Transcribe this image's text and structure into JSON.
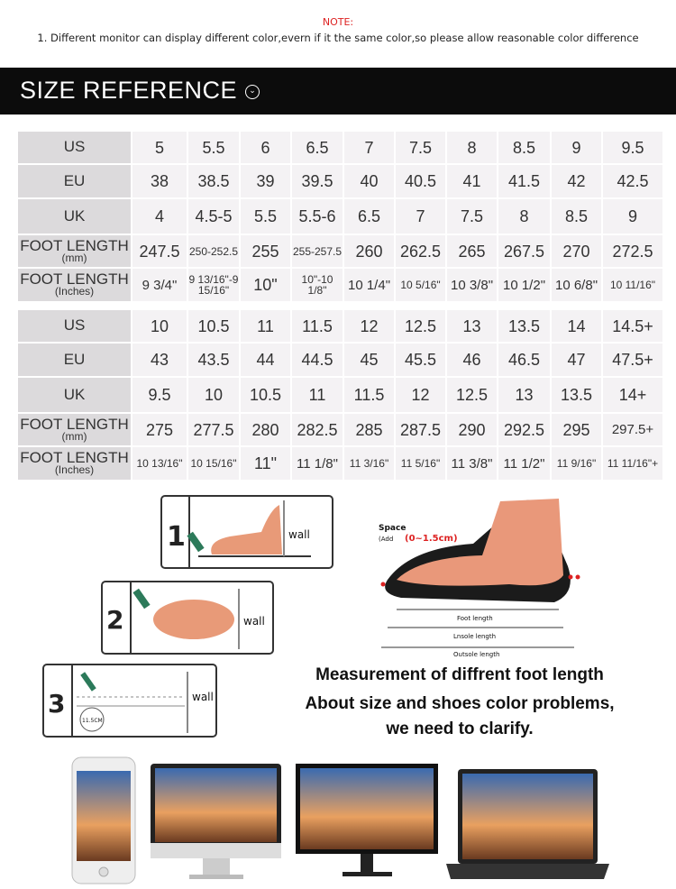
{
  "note": {
    "title": "NOTE:",
    "line": "1. Different monitor can display different color,evern if it the same color,so please allow reasonable color difference"
  },
  "header": {
    "title": "SIZE REFERENCE",
    "icon": "chevron-down-circle-icon"
  },
  "tables": [
    {
      "rows": [
        {
          "label": "US",
          "sub": "",
          "values": [
            "5",
            "5.5",
            "6",
            "6.5",
            "7",
            "7.5",
            "8",
            "8.5",
            "9",
            "9.5"
          ]
        },
        {
          "label": "EU",
          "sub": "",
          "values": [
            "38",
            "38.5",
            "39",
            "39.5",
            "40",
            "40.5",
            "41",
            "41.5",
            "42",
            "42.5"
          ]
        },
        {
          "label": "UK",
          "sub": "",
          "values": [
            "4",
            "4.5-5",
            "5.5",
            "5.5-6",
            "6.5",
            "7",
            "7.5",
            "8",
            "8.5",
            "9"
          ]
        },
        {
          "label": "FOOT LENGTH",
          "sub": "(mm)",
          "values": [
            "247.5",
            "250-252.5",
            "255",
            "255-257.5",
            "260",
            "262.5",
            "265",
            "267.5",
            "270",
            "272.5"
          ]
        },
        {
          "label": "FOOT LENGTH",
          "sub": "(Inches)",
          "values": [
            "9 3/4\"",
            "9 13/16\"-9 15/16\"",
            "10\"",
            "10\"-10 1/8\"",
            "10 1/4\"",
            "10 5/16\"",
            "10 3/8\"",
            "10 1/2\"",
            "10 6/8\"",
            "10 11/16\""
          ]
        }
      ]
    },
    {
      "rows": [
        {
          "label": "US",
          "sub": "",
          "values": [
            "10",
            "10.5",
            "11",
            "11.5",
            "12",
            "12.5",
            "13",
            "13.5",
            "14",
            "14.5+"
          ]
        },
        {
          "label": "EU",
          "sub": "",
          "values": [
            "43",
            "43.5",
            "44",
            "44.5",
            "45",
            "45.5",
            "46",
            "46.5",
            "47",
            "47.5+"
          ]
        },
        {
          "label": "UK",
          "sub": "",
          "values": [
            "9.5",
            "10",
            "10.5",
            "11",
            "11.5",
            "12",
            "12.5",
            "13",
            "13.5",
            "14+"
          ]
        },
        {
          "label": "FOOT LENGTH",
          "sub": "(mm)",
          "values": [
            "275",
            "277.5",
            "280",
            "282.5",
            "285",
            "287.5",
            "290",
            "292.5",
            "295",
            "297.5+"
          ]
        },
        {
          "label": "FOOT LENGTH",
          "sub": "(Inches)",
          "values": [
            "10 13/16\"",
            "10 15/16\"",
            "11\"",
            "11 1/8\"",
            "11 3/16\"",
            "11 5/16\"",
            "11 3/8\"",
            "11 1/2\"",
            "11 9/16\"",
            "11 11/16\"+"
          ]
        }
      ]
    }
  ],
  "steps": [
    {
      "number": "1",
      "label": "wall"
    },
    {
      "number": "2",
      "label": "wall"
    },
    {
      "number": "3",
      "label": "wall",
      "ruler": "11.5CM"
    }
  ],
  "shoe_diagram": {
    "space": "Space",
    "space_add": "(Add",
    "space_range": "(0~1.5cm)",
    "foot_length": "Foot length",
    "insole_length": "Lnsole length",
    "outsole_length": "Outsole length"
  },
  "captions": {
    "heading": "Measurement of diffrent foot length",
    "line1": "About size and shoes color problems,",
    "line2": "we need to clarify."
  },
  "devices": [
    "phone",
    "imac",
    "monitor",
    "laptop"
  ]
}
